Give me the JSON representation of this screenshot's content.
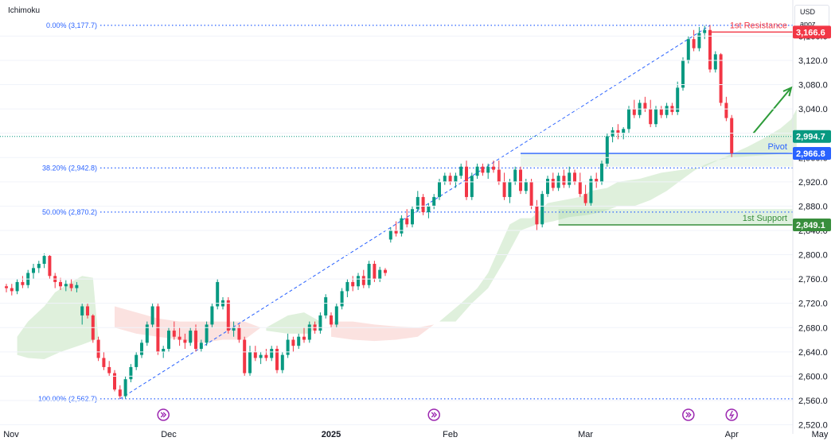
{
  "indicator_label": "Ichimoku",
  "currency": {
    "code": "USD",
    "unit": "apoz"
  },
  "colors": {
    "up": "#089981",
    "down": "#f23645",
    "fib": "#2962ff",
    "resistance": "#f23645",
    "support": "#388e3c",
    "pivot": "#2962ff",
    "cloud_bull": "#dff0dc",
    "cloud_bear": "#fbe2e0",
    "current": "#089981",
    "arrow": "#2e9c3a"
  },
  "chart_data": {
    "type": "candlestick",
    "ylim": [
      2505,
      3205
    ],
    "y_ticks": [
      "2,520.0",
      "2,560.0",
      "2,600.0",
      "2,640.0",
      "2,680.0",
      "2,720.0",
      "2,760.0",
      "2,800.0",
      "2,840.0",
      "2,880.0",
      "2,920.0",
      "2,960.0",
      "3,000.0",
      "3,040.0",
      "3,080.0",
      "3,120.0",
      "3,160.0"
    ],
    "x_ticks": [
      {
        "label": "Nov",
        "i": -2,
        "bold": false
      },
      {
        "label": "Dec",
        "i": 30,
        "bold": false
      },
      {
        "label": "2025",
        "i": 60,
        "bold": true
      },
      {
        "label": "Feb",
        "i": 82,
        "bold": false
      },
      {
        "label": "Mar",
        "i": 107,
        "bold": false
      },
      {
        "label": "Apr",
        "i": 134,
        "bold": false
      },
      {
        "label": "May",
        "i": 162,
        "bold": false
      }
    ],
    "candles": [
      [
        2748,
        2752,
        2738,
        2745
      ],
      [
        2745,
        2752,
        2733,
        2740
      ],
      [
        2740,
        2760,
        2735,
        2755
      ],
      [
        2755,
        2765,
        2745,
        2750
      ],
      [
        2750,
        2775,
        2745,
        2770
      ],
      [
        2770,
        2785,
        2760,
        2778
      ],
      [
        2778,
        2790,
        2770,
        2785
      ],
      [
        2785,
        2802,
        2778,
        2798
      ],
      [
        2798,
        2800,
        2760,
        2765
      ],
      [
        2765,
        2770,
        2745,
        2755
      ],
      [
        2755,
        2762,
        2742,
        2748
      ],
      [
        2748,
        2758,
        2740,
        2752
      ],
      [
        2752,
        2760,
        2740,
        2745
      ],
      [
        2745,
        2755,
        2738,
        2750
      ],
      [
        2700,
        2720,
        2685,
        2715
      ],
      [
        2715,
        2720,
        2695,
        2700
      ],
      [
        2700,
        2702,
        2655,
        2660
      ],
      [
        2660,
        2665,
        2625,
        2630
      ],
      [
        2630,
        2640,
        2610,
        2615
      ],
      [
        2615,
        2625,
        2600,
        2605
      ],
      [
        2605,
        2610,
        2575,
        2578
      ],
      [
        2578,
        2585,
        2563,
        2567
      ],
      [
        2567,
        2600,
        2563,
        2595
      ],
      [
        2595,
        2620,
        2590,
        2615
      ],
      [
        2615,
        2640,
        2610,
        2635
      ],
      [
        2635,
        2660,
        2630,
        2655
      ],
      [
        2655,
        2690,
        2650,
        2685
      ],
      [
        2685,
        2720,
        2680,
        2715
      ],
      [
        2715,
        2720,
        2635,
        2640
      ],
      [
        2640,
        2650,
        2630,
        2645
      ],
      [
        2645,
        2680,
        2640,
        2675
      ],
      [
        2675,
        2690,
        2660,
        2665
      ],
      [
        2665,
        2680,
        2650,
        2660
      ],
      [
        2660,
        2670,
        2645,
        2655
      ],
      [
        2655,
        2680,
        2650,
        2675
      ],
      [
        2675,
        2685,
        2640,
        2645
      ],
      [
        2645,
        2660,
        2640,
        2655
      ],
      [
        2655,
        2690,
        2650,
        2685
      ],
      [
        2685,
        2720,
        2680,
        2715
      ],
      [
        2715,
        2760,
        2710,
        2755
      ],
      [
        2715,
        2730,
        2710,
        2725
      ],
      [
        2725,
        2730,
        2670,
        2675
      ],
      [
        2675,
        2690,
        2665,
        2680
      ],
      [
        2680,
        2685,
        2655,
        2660
      ],
      [
        2660,
        2665,
        2600,
        2605
      ],
      [
        2605,
        2650,
        2600,
        2640
      ],
      [
        2640,
        2650,
        2625,
        2630
      ],
      [
        2630,
        2640,
        2620,
        2635
      ],
      [
        2635,
        2645,
        2625,
        2630
      ],
      [
        2630,
        2650,
        2625,
        2645
      ],
      [
        2645,
        2650,
        2605,
        2610
      ],
      [
        2610,
        2640,
        2605,
        2635
      ],
      [
        2635,
        2670,
        2630,
        2660
      ],
      [
        2660,
        2665,
        2640,
        2650
      ],
      [
        2650,
        2670,
        2645,
        2665
      ],
      [
        2665,
        2680,
        2655,
        2660
      ],
      [
        2660,
        2690,
        2655,
        2685
      ],
      [
        2685,
        2690,
        2670,
        2675
      ],
      [
        2675,
        2705,
        2670,
        2700
      ],
      [
        2700,
        2735,
        2695,
        2730
      ],
      [
        2700,
        2705,
        2680,
        2685
      ],
      [
        2685,
        2720,
        2680,
        2715
      ],
      [
        2715,
        2745,
        2710,
        2740
      ],
      [
        2740,
        2760,
        2730,
        2755
      ],
      [
        2755,
        2765,
        2740,
        2748
      ],
      [
        2748,
        2770,
        2742,
        2765
      ],
      [
        2765,
        2775,
        2745,
        2750
      ],
      [
        2750,
        2790,
        2745,
        2785
      ],
      [
        2785,
        2790,
        2755,
        2760
      ],
      [
        2760,
        2780,
        2755,
        2775
      ],
      [
        2775,
        2778,
        2765,
        2770
      ],
      [
        2825,
        2845,
        2820,
        2840
      ],
      [
        2840,
        2855,
        2830,
        2835
      ],
      [
        2835,
        2865,
        2830,
        2860
      ],
      [
        2860,
        2875,
        2845,
        2850
      ],
      [
        2850,
        2880,
        2845,
        2875
      ],
      [
        2875,
        2905,
        2870,
        2895
      ],
      [
        2895,
        2900,
        2865,
        2870
      ],
      [
        2870,
        2885,
        2860,
        2880
      ],
      [
        2880,
        2900,
        2875,
        2895
      ],
      [
        2895,
        2925,
        2890,
        2920
      ],
      [
        2920,
        2935,
        2915,
        2930
      ],
      [
        2930,
        2935,
        2915,
        2920
      ],
      [
        2920,
        2935,
        2910,
        2930
      ],
      [
        2930,
        2950,
        2925,
        2945
      ],
      [
        2945,
        2955,
        2890,
        2895
      ],
      [
        2895,
        2935,
        2890,
        2930
      ],
      [
        2930,
        2950,
        2925,
        2945
      ],
      [
        2945,
        2950,
        2930,
        2935
      ],
      [
        2935,
        2950,
        2925,
        2945
      ],
      [
        2945,
        2955,
        2935,
        2940
      ],
      [
        2940,
        2955,
        2915,
        2920
      ],
      [
        2920,
        2935,
        2890,
        2895
      ],
      [
        2895,
        2925,
        2885,
        2920
      ],
      [
        2920,
        2945,
        2915,
        2940
      ],
      [
        2940,
        2945,
        2900,
        2905
      ],
      [
        2905,
        2925,
        2900,
        2920
      ],
      [
        2920,
        2925,
        2875,
        2880
      ],
      [
        2880,
        2890,
        2840,
        2850
      ],
      [
        2850,
        2905,
        2845,
        2900
      ],
      [
        2900,
        2930,
        2895,
        2925
      ],
      [
        2925,
        2935,
        2905,
        2910
      ],
      [
        2910,
        2935,
        2905,
        2930
      ],
      [
        2930,
        2940,
        2910,
        2915
      ],
      [
        2915,
        2945,
        2910,
        2935
      ],
      [
        2935,
        2940,
        2915,
        2920
      ],
      [
        2920,
        2935,
        2895,
        2900
      ],
      [
        2900,
        2915,
        2880,
        2885
      ],
      [
        2885,
        2930,
        2880,
        2925
      ],
      [
        2925,
        2935,
        2910,
        2920
      ],
      [
        2920,
        2955,
        2915,
        2950
      ],
      [
        2950,
        3000,
        2945,
        2995
      ],
      [
        2995,
        3010,
        2985,
        3005
      ],
      [
        3005,
        3015,
        2990,
        3000
      ],
      [
        3000,
        3010,
        2990,
        3007
      ],
      [
        3007,
        3045,
        3000,
        3040
      ],
      [
        3040,
        3055,
        3025,
        3030
      ],
      [
        3030,
        3055,
        3025,
        3050
      ],
      [
        3050,
        3060,
        3035,
        3040
      ],
      [
        3040,
        3055,
        3010,
        3015
      ],
      [
        3015,
        3045,
        3010,
        3040
      ],
      [
        3040,
        3045,
        3025,
        3030
      ],
      [
        3030,
        3050,
        3025,
        3045
      ],
      [
        3045,
        3050,
        3030,
        3035
      ],
      [
        3035,
        3085,
        3030,
        3075
      ],
      [
        3075,
        3125,
        3070,
        3120
      ],
      [
        3120,
        3160,
        3115,
        3155
      ],
      [
        3155,
        3170,
        3135,
        3140
      ],
      [
        3140,
        3175,
        3135,
        3165
      ],
      [
        3165,
        3177,
        3155,
        3170
      ],
      [
        3170,
        3178,
        3100,
        3105
      ],
      [
        3105,
        3135,
        3100,
        3130
      ],
      [
        3130,
        3132,
        3045,
        3050
      ],
      [
        3050,
        3060,
        3020,
        3025
      ],
      [
        3025,
        3030,
        2960,
        2967
      ]
    ],
    "cloud_bull": [
      [
        [
          2,
          2665
        ],
        [
          4,
          2690
        ],
        [
          7,
          2715
        ],
        [
          9,
          2738
        ],
        [
          12,
          2755
        ],
        [
          14,
          2765
        ],
        [
          16,
          2762
        ],
        [
          17,
          2662
        ],
        [
          14,
          2652
        ],
        [
          10,
          2640
        ],
        [
          7,
          2628
        ],
        [
          4,
          2630
        ],
        [
          2,
          2635
        ]
      ],
      [
        [
          80,
          2690
        ],
        [
          84,
          2720
        ],
        [
          87,
          2745
        ],
        [
          89,
          2770
        ],
        [
          91,
          2810
        ],
        [
          93,
          2850
        ],
        [
          95,
          2860
        ],
        [
          97,
          2860
        ],
        [
          100,
          2885
        ],
        [
          103,
          2890
        ],
        [
          106,
          2895
        ],
        [
          108,
          2905
        ],
        [
          111,
          2910
        ],
        [
          113,
          2920
        ],
        [
          117,
          2925
        ],
        [
          121,
          2935
        ],
        [
          125,
          2940
        ],
        [
          129,
          2945
        ],
        [
          133,
          2962
        ],
        [
          137,
          2978
        ],
        [
          140,
          2992
        ],
        [
          143,
          3008
        ],
        [
          145,
          3023
        ],
        [
          146,
          3040
        ],
        [
          146,
          2970
        ],
        [
          143,
          2966
        ],
        [
          140,
          2964
        ],
        [
          137,
          2962
        ],
        [
          134,
          2960
        ],
        [
          131,
          2955
        ],
        [
          129,
          2948
        ],
        [
          127,
          2938
        ],
        [
          125,
          2925
        ],
        [
          122,
          2905
        ],
        [
          119,
          2890
        ],
        [
          116,
          2880
        ],
        [
          113,
          2880
        ],
        [
          110,
          2870
        ],
        [
          107,
          2865
        ],
        [
          104,
          2862
        ],
        [
          101,
          2855
        ],
        [
          98,
          2850
        ],
        [
          95,
          2840
        ],
        [
          92,
          2790
        ],
        [
          89,
          2745
        ],
        [
          86,
          2720
        ],
        [
          83,
          2690
        ]
      ],
      [
        [
          48,
          2680
        ],
        [
          52,
          2700
        ],
        [
          55,
          2705
        ],
        [
          58,
          2690
        ],
        [
          56,
          2670
        ],
        [
          52,
          2670
        ],
        [
          48,
          2675
        ]
      ]
    ],
    "cloud_bear": [
      [
        [
          20,
          2715
        ],
        [
          24,
          2705
        ],
        [
          28,
          2695
        ],
        [
          32,
          2690
        ],
        [
          36,
          2690
        ],
        [
          40,
          2690
        ],
        [
          44,
          2690
        ],
        [
          47,
          2680
        ],
        [
          44,
          2660
        ],
        [
          40,
          2660
        ],
        [
          36,
          2655
        ],
        [
          32,
          2660
        ],
        [
          28,
          2665
        ],
        [
          24,
          2670
        ],
        [
          20,
          2680
        ]
      ],
      [
        [
          60,
          2690
        ],
        [
          64,
          2690
        ],
        [
          68,
          2685
        ],
        [
          72,
          2682
        ],
        [
          76,
          2680
        ],
        [
          79,
          2685
        ],
        [
          76,
          2665
        ],
        [
          72,
          2660
        ],
        [
          68,
          2658
        ],
        [
          64,
          2660
        ],
        [
          60,
          2665
        ]
      ]
    ],
    "fib": {
      "levels": [
        {
          "label": "0.00% (3,177.7)",
          "price": 3177.7
        },
        {
          "label": "38.20% (2,942.8)",
          "price": 2942.8
        },
        {
          "label": "50.00% (2,870.2)",
          "price": 2870.2
        },
        {
          "label": "100.00% (2,562.7)",
          "price": 2562.7
        }
      ],
      "trend_from": {
        "i": 21,
        "price": 2562.7
      },
      "trend_to": {
        "i": 130,
        "price": 3177.7
      }
    },
    "levels": {
      "resistance": {
        "label": "1st Resistance",
        "price": 3166.6,
        "badge": "3,166.6",
        "from_i": 130
      },
      "pivot": {
        "label": "Pivot",
        "price": 2966.8,
        "badge": "2,966.8",
        "from_i": 95
      },
      "support": {
        "label": "1st Support",
        "price": 2849.1,
        "badge": "2,849.1",
        "from_i": 102,
        "zone_top": 2875
      }
    },
    "current_price": {
      "price": 2994.7,
      "badge": "2,994.7"
    },
    "arrow": {
      "from_i": 138,
      "from_price": 3000,
      "to_i": 145,
      "to_price": 3075
    },
    "events": [
      {
        "i": 29,
        "type": "forward-icon"
      },
      {
        "i": 79,
        "type": "forward-icon"
      },
      {
        "i": 126,
        "type": "forward-icon"
      },
      {
        "i": 134,
        "type": "lightning-icon"
      }
    ]
  }
}
